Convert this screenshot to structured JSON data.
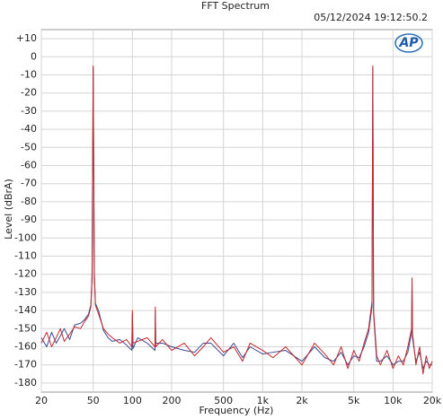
{
  "chart_data": {
    "type": "line",
    "title": "FFT Spectrum",
    "timestamp": "05/12/2024 19:12:50.2",
    "logo": "AP",
    "x_label": "Frequency (Hz)",
    "y_label": "Level (dBrA)",
    "x_log": true,
    "grid": true,
    "xlim": [
      20,
      20000
    ],
    "ylim": [
      -185,
      15
    ],
    "xticks": [
      20,
      50,
      100,
      200,
      500,
      {
        "value": 1000,
        "label": "1k"
      },
      {
        "value": 2000,
        "label": "2k"
      },
      {
        "value": 5000,
        "label": "5k"
      },
      {
        "value": 10000,
        "label": "10k"
      },
      {
        "value": 20000,
        "label": "20k"
      }
    ],
    "yticks": [
      {
        "value": 10,
        "label": "+10"
      },
      0,
      -10,
      -20,
      -30,
      -40,
      -50,
      -60,
      -70,
      -80,
      -90,
      -100,
      -110,
      -120,
      -130,
      -140,
      -150,
      -160,
      -170,
      -180
    ],
    "x": [
      20,
      22,
      24,
      26,
      28,
      30,
      33,
      36,
      40,
      43,
      46,
      48,
      49,
      50,
      51,
      52,
      55,
      60,
      65,
      70,
      80,
      90,
      99,
      100,
      101,
      110,
      130,
      149,
      150,
      151,
      170,
      200,
      250,
      300,
      350,
      400,
      500,
      600,
      700,
      800,
      1000,
      1200,
      1500,
      2000,
      2500,
      3000,
      3500,
      4000,
      4500,
      5000,
      5500,
      6000,
      6500,
      6900,
      7000,
      7100,
      7500,
      8000,
      9000,
      10000,
      11000,
      12000,
      13000,
      13900,
      14000,
      14100,
      15000,
      16000,
      17000,
      18000,
      19000,
      20000
    ],
    "series": [
      {
        "color": "#3a4a92",
        "values": [
          -155,
          -160,
          -152,
          -158,
          -154,
          -150,
          -156,
          -148,
          -147,
          -145,
          -142,
          -137,
          -122,
          -6,
          -120,
          -136,
          -140,
          -151,
          -155,
          -157,
          -156,
          -159,
          -162,
          -142,
          -161,
          -155,
          -158,
          -162,
          -140,
          -158,
          -158,
          -160,
          -162,
          -163,
          -158,
          -158,
          -165,
          -158,
          -166,
          -160,
          -164,
          -163,
          -162,
          -168,
          -160,
          -166,
          -168,
          -163,
          -170,
          -165,
          -166,
          -160,
          -152,
          -138,
          -6,
          -142,
          -168,
          -168,
          -165,
          -170,
          -168,
          -168,
          -163,
          -152,
          -124,
          -155,
          -168,
          -163,
          -172,
          -168,
          -170,
          -170
        ]
      },
      {
        "color": "#c0282f",
        "values": [
          -158,
          -152,
          -160,
          -155,
          -150,
          -157,
          -153,
          -149,
          -150,
          -146,
          -143,
          -138,
          -120,
          -5,
          -118,
          -137,
          -142,
          -150,
          -153,
          -155,
          -158,
          -156,
          -160,
          -140,
          -158,
          -157,
          -155,
          -160,
          -138,
          -160,
          -156,
          -162,
          -158,
          -165,
          -160,
          -155,
          -163,
          -160,
          -168,
          -158,
          -162,
          -166,
          -160,
          -170,
          -158,
          -164,
          -170,
          -160,
          -172,
          -162,
          -168,
          -158,
          -150,
          -135,
          -5,
          -140,
          -165,
          -170,
          -162,
          -172,
          -165,
          -170,
          -160,
          -150,
          -122,
          -152,
          -170,
          -160,
          -175,
          -165,
          -172,
          -168
        ]
      }
    ]
  }
}
